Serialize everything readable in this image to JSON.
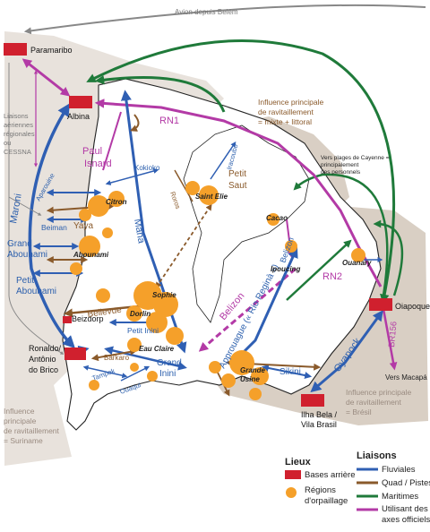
{
  "top_label": "Avion depuis Belém",
  "bases": {
    "paramaribo": "Paramaribo",
    "albina": "Albina",
    "ronaldo_1": "Ronaldo/",
    "ronaldo_2": "Antônio",
    "ronaldo_3": "do Brico",
    "beizdorp": "Beizdorp",
    "oiapoque": "Oiapoque",
    "ilha_1": "Ilha Bela /",
    "ilha_2": "Vila Brasil"
  },
  "air_links": [
    "Liaisons",
    "aériennes",
    "régionales",
    "ou",
    "CESSNA"
  ],
  "rivers": {
    "maroni": "Maroni",
    "grand_abounami_1": "Grand",
    "grand_abounami_2": "Abounami",
    "petit_abounami_1": "Petit",
    "petit_abounami_2": "Abounami",
    "beiman": "Beiman",
    "aparouine": "Aparouine",
    "kokioko": "Kokioko",
    "mana": "Mana",
    "iracoubo": "Iracoubo",
    "petit_inini": "Petit Inini",
    "grand_inini_1": "Grand",
    "grand_inini_2": "Inini",
    "tampok": "Tampok",
    "ouaqui": "Ouaqui",
    "sikini": "Sikini",
    "approuague": "Approuague (« Rio Reginà »)",
    "oyapock": "Oyapock",
    "belizon": "Belizon"
  },
  "roads": {
    "rn1": "RN1",
    "rn2": "RN2",
    "br156": "BR156",
    "paul_isnard_1": "Paul",
    "paul_isnard_2": "Isnard",
    "belizon_road": "Belizon"
  },
  "quad_labels": {
    "yaya": "Yaya",
    "bellevue": "Bellevue",
    "barkaro": "Barkaro",
    "roros": "Roros",
    "petit_saut_1": "Petit",
    "petit_saut_2": "Saut"
  },
  "sites": {
    "citron": "Citron",
    "abounami": "Abounami",
    "sophie": "Sophie",
    "dorlin": "Dorlin",
    "eau_claire": "Eau Claire",
    "saint_elie": "Saint Elie",
    "cacao": "Cacao",
    "ipoucing": "Ipoucing",
    "ouanary": "Ouanary",
    "grande_usine_1": "Grande",
    "grande_usine_2": "Usine"
  },
  "influences": {
    "mixte_1": "Influence principale",
    "mixte_2": "de ravitaillement",
    "mixte_3": "= mixte + littoral",
    "suriname_1": "Influence",
    "suriname_2": "principale",
    "suriname_3": "de ravitaillement",
    "suriname_4": "= Suriname",
    "bresil_1": "Influence principale",
    "bresil_2": "de ravitaillement",
    "bresil_3": "= Brésil"
  },
  "cayenne_note": [
    "Vers plages de Cayenne =",
    "principalement",
    "des personnels"
  ],
  "vers_macapa": "Vers Macapá",
  "legend": {
    "lieux_title": "Lieux",
    "liaisons_title": "Liaisons",
    "bases_arriere": "Bases arrière",
    "regions_1": "Régions",
    "regions_2": "d'orpaillage",
    "fluviales": "Fluviales",
    "quad": "Quad / Pistes",
    "maritimes": "Maritimes",
    "officiels_1": "Utilisant des",
    "officiels_2": "axes officiels"
  },
  "colors": {
    "base": "#d0202e",
    "orpaillage": "#f5a02a",
    "fluviale": "#2f5fb3",
    "quad": "#8a5a2b",
    "maritime": "#1f7a3a",
    "officiel": "#b33aa6",
    "zone_suriname": "#e8e2dc",
    "zone_mixte": "#d9cfc4",
    "zone_bresil": "#d9cfc4"
  }
}
